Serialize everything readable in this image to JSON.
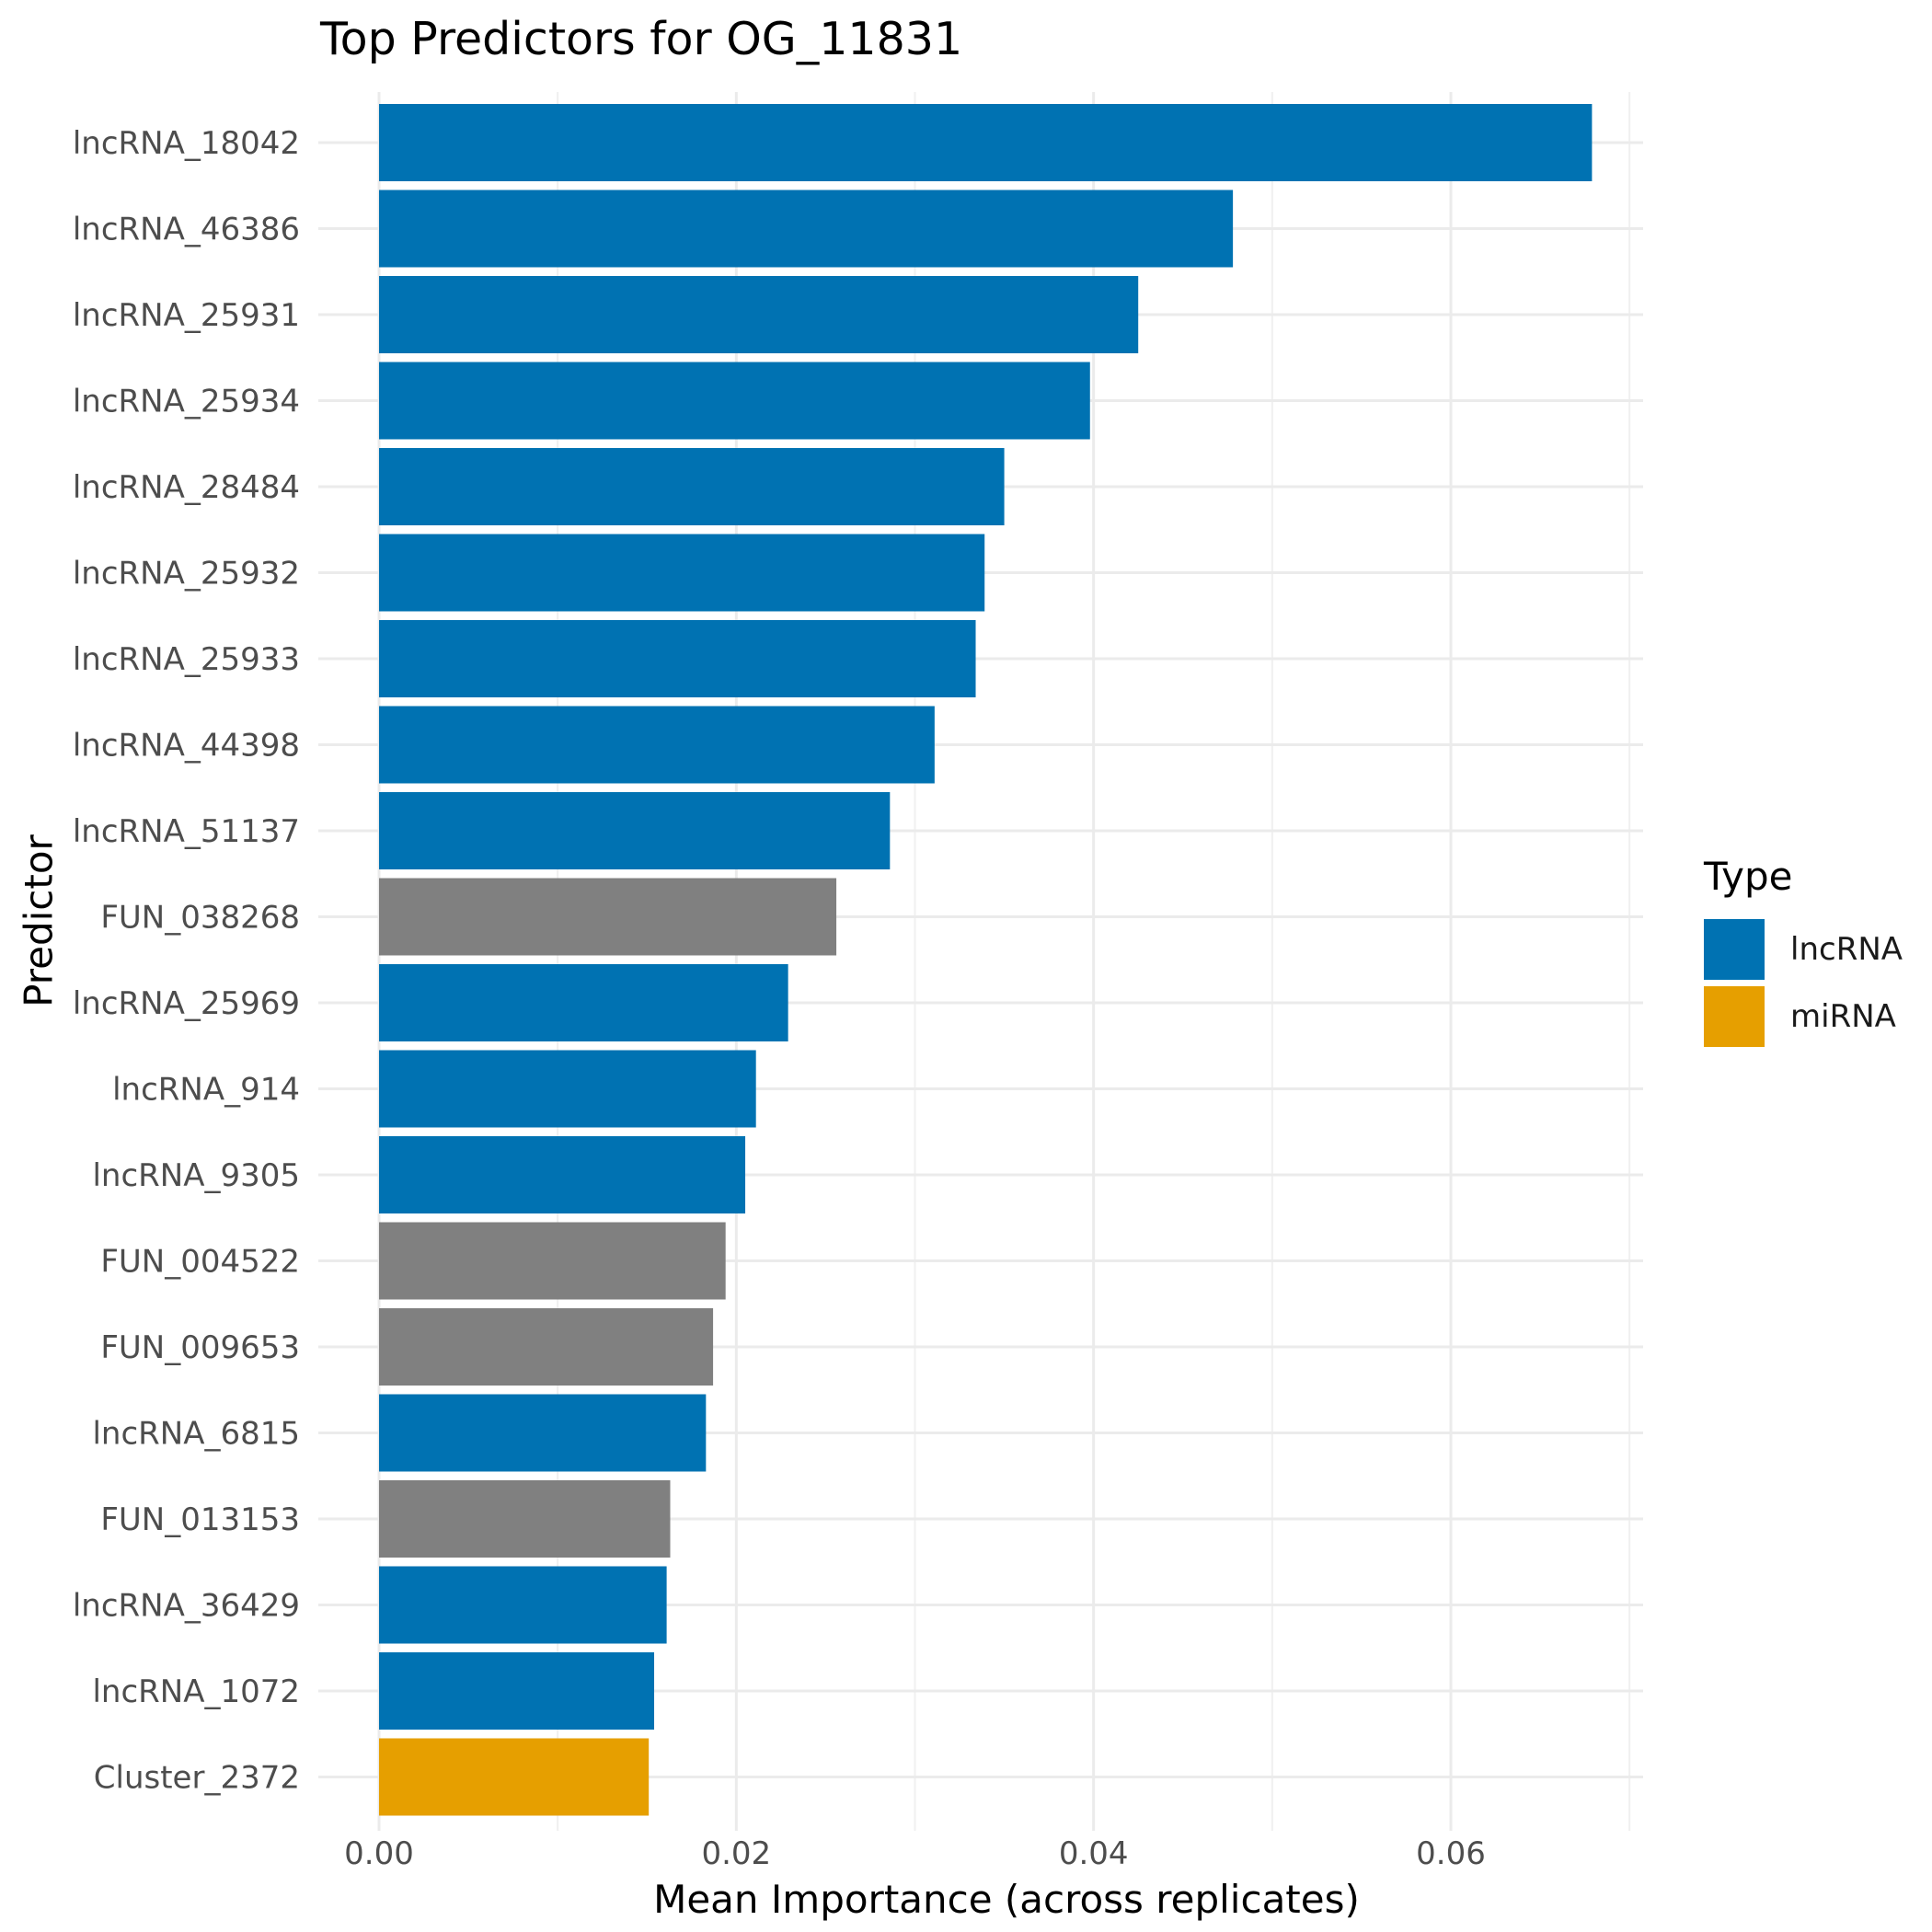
{
  "chart_data": {
    "type": "bar",
    "orientation": "horizontal",
    "title": "Top Predictors for OG_11831",
    "xlabel": "Mean Importance (across replicates)",
    "ylabel": "Predictor",
    "xlim": [
      0,
      0.071
    ],
    "xticks": [
      0.0,
      0.02,
      0.04,
      0.06
    ],
    "xtick_labels": [
      "0.00",
      "0.02",
      "0.04",
      "0.06"
    ],
    "grid": true,
    "legend_position": "right",
    "legend": {
      "title": "Type",
      "entries": [
        {
          "label": "lncRNA",
          "color": "#0072B2"
        },
        {
          "label": "miRNA",
          "color": "#E69F00"
        }
      ]
    },
    "type_colors": {
      "lncRNA": "#0072B2",
      "miRNA": "#E69F00",
      "other": "#808080"
    },
    "categories": [
      "lncRNA_18042",
      "lncRNA_46386",
      "lncRNA_25931",
      "lncRNA_25934",
      "lncRNA_28484",
      "lncRNA_25932",
      "lncRNA_25933",
      "lncRNA_44398",
      "lncRNA_51137",
      "FUN_038268",
      "lncRNA_25969",
      "lncRNA_914",
      "lncRNA_9305",
      "FUN_004522",
      "FUN_009653",
      "lncRNA_6815",
      "FUN_013153",
      "lncRNA_36429",
      "lncRNA_1072",
      "Cluster_2372"
    ],
    "values": [
      0.0679,
      0.0478,
      0.0425,
      0.0398,
      0.035,
      0.0339,
      0.0334,
      0.0311,
      0.0286,
      0.0256,
      0.0229,
      0.0211,
      0.0205,
      0.0194,
      0.0187,
      0.0183,
      0.0163,
      0.0161,
      0.0154,
      0.0151
    ],
    "types": [
      "lncRNA",
      "lncRNA",
      "lncRNA",
      "lncRNA",
      "lncRNA",
      "lncRNA",
      "lncRNA",
      "lncRNA",
      "lncRNA",
      "other",
      "lncRNA",
      "lncRNA",
      "lncRNA",
      "other",
      "other",
      "lncRNA",
      "other",
      "lncRNA",
      "lncRNA",
      "miRNA"
    ]
  }
}
